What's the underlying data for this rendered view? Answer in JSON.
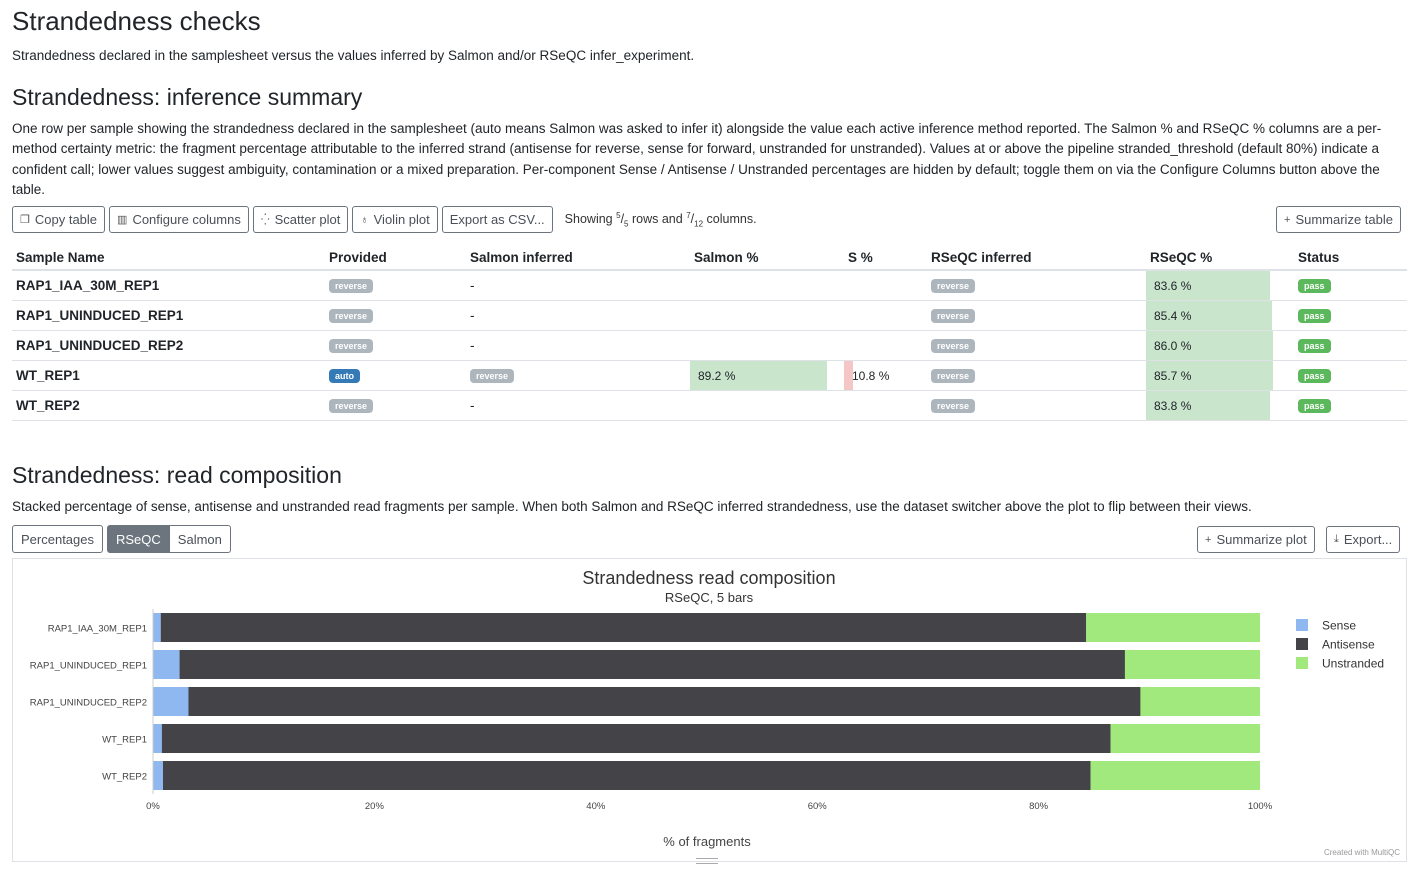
{
  "page": {
    "title": "Strandedness checks",
    "intro": "Strandedness declared in the samplesheet versus the values inferred by Salmon and/or RSeQC infer_experiment."
  },
  "summary": {
    "heading": "Strandedness: inference summary",
    "description": "One row per sample showing the strandedness declared in the samplesheet (auto means Salmon was asked to infer it) alongside the value each active inference method reported. The Salmon % and RSeQC % columns are a per-method certainty metric: the fragment percentage attributable to the inferred strand (antisense for reverse, sense for forward, unstranded for unstranded). Values at or above the pipeline stranded_threshold (default 80%) indicate a confident call; lower values suggest ambiguity, contamination or a mixed preparation. Per-component Sense / Antisense / Unstranded percentages are hidden by default; toggle them on via the Configure Columns button above the table.",
    "toolbar": {
      "copy_label": "Copy table",
      "configure_label": "Configure columns",
      "scatter_label": "Scatter plot",
      "violin_label": "Violin plot",
      "export_label": "Export as CSV...",
      "showing_prefix": "Showing",
      "rows_shown": "5",
      "rows_total": "5",
      "rows_word": "rows and",
      "cols_shown": "7",
      "cols_total": "12",
      "cols_word": "columns.",
      "summarize_label": "Summarize table"
    },
    "columns": [
      "Sample Name",
      "Provided",
      "Salmon inferred",
      "Salmon %",
      "S %",
      "RSeQC inferred",
      "RSeQC %",
      "Status"
    ],
    "rows": [
      {
        "sample": "RAP1_IAA_30M_REP1",
        "provided": "reverse",
        "salmon_inferred": "-",
        "salmon_pct": "",
        "s_pct": "",
        "rseqc_inferred": "reverse",
        "rseqc_pct": "83.6 %",
        "rseqc_val": 83.6,
        "status": "pass"
      },
      {
        "sample": "RAP1_UNINDUCED_REP1",
        "provided": "reverse",
        "salmon_inferred": "-",
        "salmon_pct": "",
        "s_pct": "",
        "rseqc_inferred": "reverse",
        "rseqc_pct": "85.4 %",
        "rseqc_val": 85.4,
        "status": "pass"
      },
      {
        "sample": "RAP1_UNINDUCED_REP2",
        "provided": "reverse",
        "salmon_inferred": "-",
        "salmon_pct": "",
        "s_pct": "",
        "rseqc_inferred": "reverse",
        "rseqc_pct": "86.0 %",
        "rseqc_val": 86.0,
        "status": "pass"
      },
      {
        "sample": "WT_REP1",
        "provided": "auto",
        "salmon_inferred": "reverse",
        "salmon_pct": "89.2 %",
        "salmon_val": 89.2,
        "s_pct": "10.8 %",
        "s_val": 10.8,
        "rseqc_inferred": "reverse",
        "rseqc_pct": "85.7 %",
        "rseqc_val": 85.7,
        "status": "pass"
      },
      {
        "sample": "WT_REP2",
        "provided": "reverse",
        "salmon_inferred": "-",
        "salmon_pct": "",
        "s_pct": "",
        "rseqc_inferred": "reverse",
        "rseqc_pct": "83.8 %",
        "rseqc_val": 83.8,
        "status": "pass"
      }
    ],
    "colors": {
      "badge_grey": "#adb5bd",
      "badge_auto": "#337ab7",
      "badge_pass": "#5cb85c",
      "good_fill": "#c9e5cc",
      "bad_fill": "#f5c6c6"
    }
  },
  "composition": {
    "heading": "Strandedness: read composition",
    "description": "Stacked percentage of sense, antisense and unstranded read fragments per sample. When both Salmon and RSeQC inferred strandedness, use the dataset switcher above the plot to flip between their views.",
    "switch": {
      "percentages_label": "Percentages",
      "rseqc_label": "RSeQC",
      "salmon_label": "Salmon",
      "active": "RSeQC"
    },
    "summarize_label": "Summarize plot",
    "export_label": "Export...",
    "credit": "Created with MultiQC"
  },
  "chart_data": {
    "type": "bar",
    "orientation": "horizontal",
    "stacked": true,
    "title": "Strandedness read composition",
    "subtitle": "RSeQC, 5 bars",
    "xlabel": "% of fragments",
    "ylabel": "",
    "xlim": [
      0,
      100
    ],
    "xticks": [
      "0%",
      "20%",
      "40%",
      "60%",
      "80%",
      "100%"
    ],
    "categories": [
      "RAP1_IAA_30M_REP1",
      "RAP1_UNINDUCED_REP1",
      "RAP1_UNINDUCED_REP2",
      "WT_REP1",
      "WT_REP2"
    ],
    "series": [
      {
        "name": "Sense",
        "color": "#90b8f0",
        "values": [
          0.7,
          2.4,
          3.2,
          0.8,
          0.9
        ]
      },
      {
        "name": "Antisense",
        "color": "#434348",
        "values": [
          83.6,
          85.4,
          86.0,
          85.7,
          83.8
        ]
      },
      {
        "name": "Unstranded",
        "color": "#a1e97c",
        "values": [
          15.7,
          12.2,
          10.8,
          13.5,
          15.3
        ]
      }
    ],
    "legend": "right",
    "grid": false
  }
}
